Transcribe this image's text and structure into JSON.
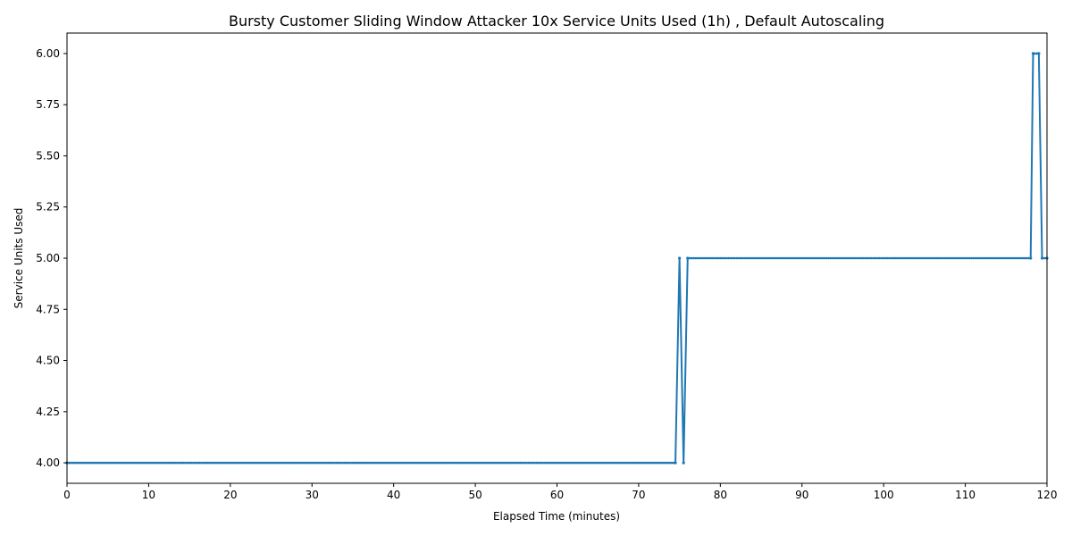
{
  "chart_data": {
    "type": "line",
    "title": "Bursty Customer Sliding Window Attacker 10x Service Units Used (1h) , Default Autoscaling",
    "xlabel": "Elapsed Time (minutes)",
    "ylabel": "Service Units Used",
    "xlim": [
      0,
      120
    ],
    "ylim": [
      3.9,
      6.1
    ],
    "xticks": [
      0,
      10,
      20,
      30,
      40,
      50,
      60,
      70,
      80,
      90,
      100,
      110,
      120
    ],
    "yticks": [
      4.0,
      4.25,
      4.5,
      4.75,
      5.0,
      5.25,
      5.5,
      5.75,
      6.0
    ],
    "ytick_labels": [
      "4.00",
      "4.25",
      "4.50",
      "4.75",
      "5.00",
      "5.25",
      "5.50",
      "5.75",
      "6.00"
    ],
    "grid": false,
    "series_color": "#1f77b4",
    "series": [
      {
        "name": "",
        "x": [
          0,
          74.5,
          75,
          75.5,
          76,
          118,
          118.3,
          119,
          119.4,
          120
        ],
        "y": [
          4,
          4,
          5,
          4,
          5,
          5,
          6,
          6,
          5,
          5
        ]
      }
    ]
  }
}
